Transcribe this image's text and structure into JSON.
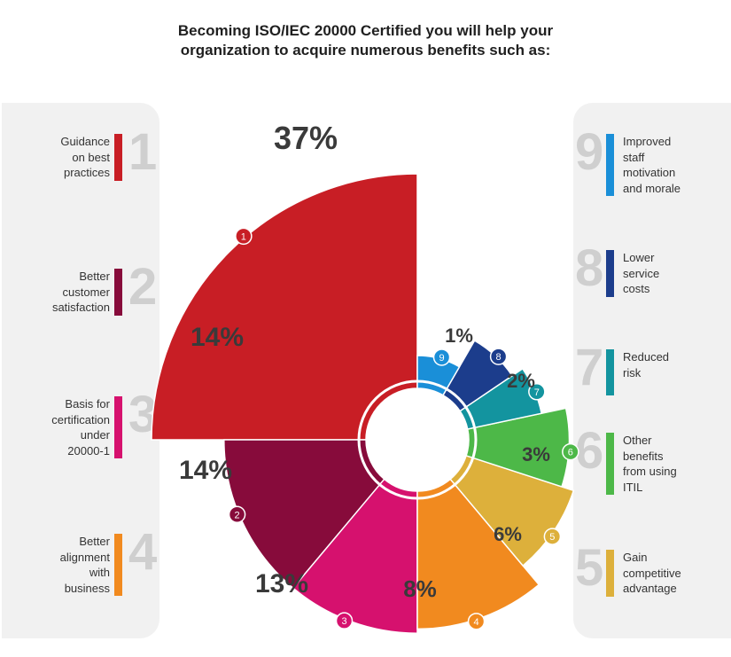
{
  "title_line1": "Becoming ISO/IEC 20000 Certified you will help your",
  "title_line2": "organization to acquire numerous benefits such as:",
  "left_items": [
    {
      "num": "1",
      "lines": [
        "Guidance",
        "on best",
        "practices"
      ],
      "color": "#c81e25"
    },
    {
      "num": "2",
      "lines": [
        "Better",
        "customer",
        "satisfaction"
      ],
      "color": "#870b3b"
    },
    {
      "num": "3",
      "lines": [
        "Basis for",
        "certification",
        "under",
        "20000-1"
      ],
      "color": "#d6116e"
    },
    {
      "num": "4",
      "lines": [
        "Better",
        "alignment",
        "with",
        "business"
      ],
      "color": "#f18a1f"
    }
  ],
  "right_items": [
    {
      "num": "9",
      "lines": [
        "Improved",
        "staff",
        "motivation",
        "and morale"
      ],
      "color": "#1a8fd8"
    },
    {
      "num": "8",
      "lines": [
        "Lower",
        "service",
        "costs"
      ],
      "color": "#1c3d8c"
    },
    {
      "num": "7",
      "lines": [
        "Reduced",
        "risk"
      ],
      "color": "#13949f"
    },
    {
      "num": "6",
      "lines": [
        "Other",
        "benefits",
        "from using",
        "ITIL"
      ],
      "color": "#4db848"
    },
    {
      "num": "5",
      "lines": [
        "Gain",
        "competitive",
        "advantage"
      ],
      "color": "#ddb03b"
    }
  ],
  "chart_data": {
    "type": "pie",
    "subtype": "polar-area (rose)",
    "title": "Becoming ISO/IEC 20000 Certified you will help your organization to acquire numerous benefits such as:",
    "series": [
      {
        "id": "1",
        "label": "Guidance on best practices",
        "value": 37,
        "display": "37%",
        "color": "#c81e25"
      },
      {
        "id": "2",
        "label": "Better customer satisfaction",
        "value": 14,
        "display": "14%",
        "color": "#870b3b"
      },
      {
        "id": "3",
        "label": "Basis for certification under 20000-1",
        "value": 14,
        "display": "14%",
        "color": "#d6116e"
      },
      {
        "id": "4",
        "label": "Better alignment with business",
        "value": 13,
        "display": "13%",
        "color": "#f18a1f"
      },
      {
        "id": "5",
        "label": "Gain competitive advantage",
        "value": 8,
        "display": "8%",
        "color": "#ddb03b"
      },
      {
        "id": "6",
        "label": "Other benefits from using ITIL",
        "value": 6,
        "display": "6%",
        "color": "#4db848"
      },
      {
        "id": "7",
        "label": "Reduced risk",
        "value": 3,
        "display": "3%",
        "color": "#13949f"
      },
      {
        "id": "8",
        "label": "Lower service costs",
        "value": 2,
        "display": "2%",
        "color": "#1c3d8c"
      },
      {
        "id": "9",
        "label": "Improved staff motivation and morale",
        "value": 1,
        "display": "1%",
        "color": "#1a8fd8"
      }
    ]
  }
}
